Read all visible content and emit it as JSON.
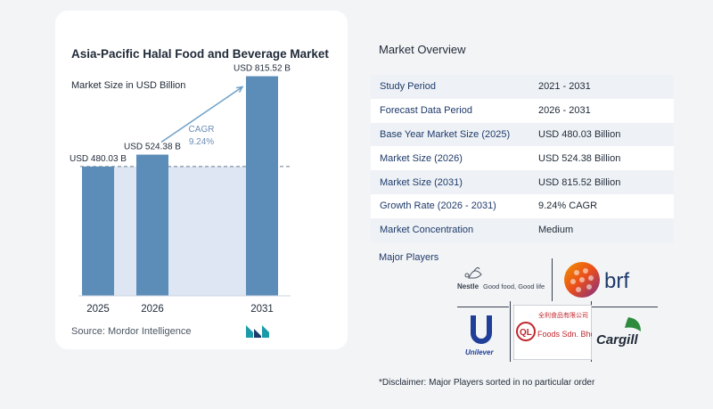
{
  "chart_data": {
    "type": "bar",
    "title": "Asia-Pacific Halal Food and Beverage Market",
    "subtitle": "Market Size in USD Billion",
    "categories": [
      "2025",
      "2026",
      "2031"
    ],
    "values": [
      480.03,
      524.38,
      815.52
    ],
    "value_labels": [
      "USD 480.03 B",
      "USD 524.38 B",
      "USD 815.52 B"
    ],
    "cagr_label": "CAGR",
    "cagr_value": "9.24%",
    "ylim": [
      0,
      900
    ],
    "grid": false
  },
  "source": "Source: Mordor Intelligence",
  "overview": {
    "title": "Market Overview",
    "rows": [
      {
        "label": "Study Period",
        "value": "2021 - 2031"
      },
      {
        "label": "Forecast Data Period",
        "value": "2026 - 2031"
      },
      {
        "label": "Base Year Market Size (2025)",
        "value": "USD 480.03 Billion"
      },
      {
        "label": "Market Size (2026)",
        "value": "USD 524.38 Billion"
      },
      {
        "label": "Market Size (2031)",
        "value": "USD 815.52 Billion"
      },
      {
        "label": "Growth Rate (2026 - 2031)",
        "value": "9.24% CAGR"
      },
      {
        "label": "Market Concentration",
        "value": "Medium"
      }
    ]
  },
  "players": {
    "title": "Major Players",
    "nestle_name": "Nestle",
    "nestle_tagline": "Good food, Good life",
    "brf_name": "brf",
    "unilever_name": "Unilever",
    "ql_chinese": "全利食品有限公司",
    "ql_mark": "QL",
    "ql_name": "Foods Sdn. Bhd.",
    "cargill_name": "Cargill"
  },
  "disclaimer": "*Disclaimer: Major Players sorted in no particular order",
  "colors": {
    "bar": "#5b8db8",
    "bar_highlight": "#dde6f2",
    "accent": "#3b6f9b",
    "brf_orange": "#e94e1b",
    "brf_purple": "#7b2d8e"
  }
}
